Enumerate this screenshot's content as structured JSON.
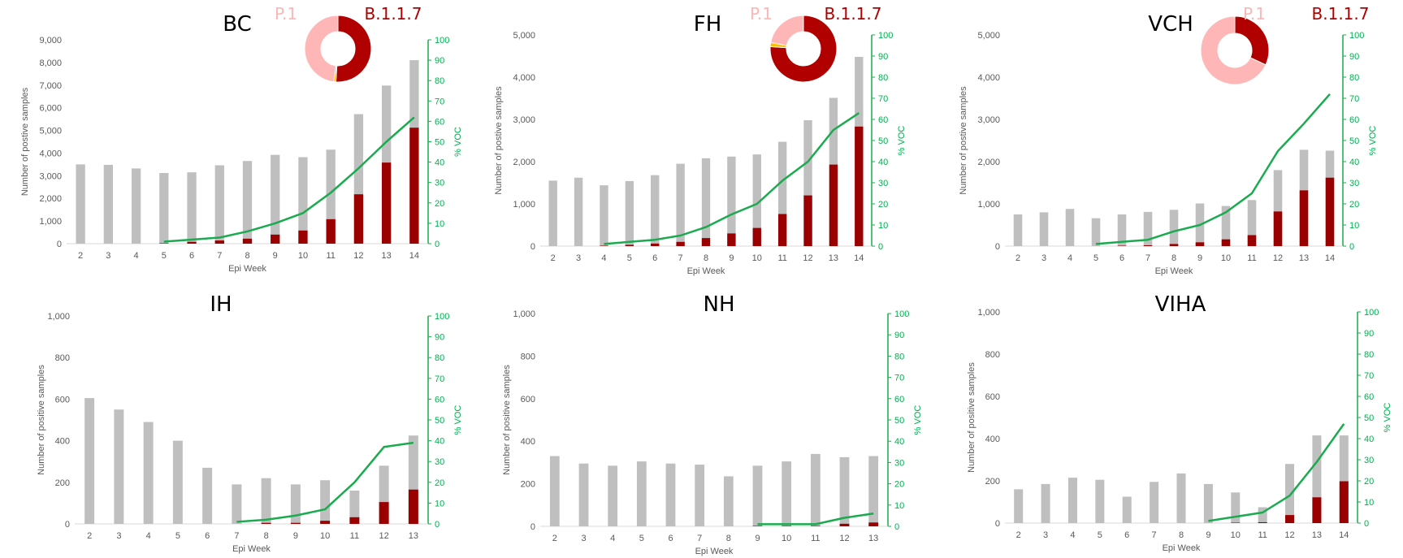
{
  "colors": {
    "total_bar": "#bfbfbf",
    "voc_bar": "#9b0000",
    "voc_line": "#1aab4f",
    "b117": "#b00000",
    "p1": "#ffb6b6",
    "other_lineage": "#ffc000",
    "axis_text": "#595959",
    "green_text": "#00b050"
  },
  "chart_data": [
    {
      "type": "bar",
      "title": "BC",
      "xlabel": "Epi Week",
      "ylabel": "Number of postive samples",
      "y2label": "% VOC",
      "categories": [
        "2",
        "3",
        "4",
        "5",
        "6",
        "7",
        "8",
        "9",
        "10",
        "11",
        "12",
        "13",
        "14"
      ],
      "ylim": [
        0,
        9000
      ],
      "yticks": [
        "0",
        "1,000",
        "2,000",
        "3,000",
        "4,000",
        "5,000",
        "6,000",
        "7,000",
        "8,000",
        "9,000"
      ],
      "y2lim": [
        0,
        100
      ],
      "y2ticks": [
        "0",
        "10",
        "20",
        "30",
        "40",
        "50",
        "60",
        "70",
        "80",
        "90",
        "100"
      ],
      "series": [
        {
          "values": [
            3500,
            3480,
            3320,
            3120,
            3150,
            3460,
            3650,
            3920,
            3820,
            4150,
            5720,
            6980,
            8100
          ]
        },
        {
          "values": [
            0,
            0,
            0,
            20,
            80,
            140,
            220,
            400,
            580,
            1080,
            2180,
            3580,
            5120
          ]
        },
        {
          "values": [
            null,
            null,
            null,
            1,
            2,
            3,
            6,
            10,
            15,
            25,
            37,
            50,
            62
          ]
        }
      ],
      "donut": {
        "labels": [
          "B.1.1.7",
          "P.1"
        ],
        "segments": [
          {
            "value": 51
          },
          {
            "value": 1
          },
          {
            "value": 48
          }
        ]
      }
    },
    {
      "type": "bar",
      "title": "FH",
      "xlabel": "Epi Week",
      "ylabel": "Number of postive samples",
      "y2label": "% VOC",
      "categories": [
        "2",
        "3",
        "4",
        "5",
        "6",
        "7",
        "8",
        "9",
        "10",
        "11",
        "12",
        "13",
        "14"
      ],
      "ylim": [
        0,
        5000
      ],
      "yticks": [
        "0",
        "1,000",
        "2,000",
        "3,000",
        "4,000",
        "5,000"
      ],
      "y2lim": [
        0,
        100
      ],
      "y2ticks": [
        "0",
        "10",
        "20",
        "30",
        "40",
        "50",
        "60",
        "70",
        "80",
        "90",
        "100"
      ],
      "series": [
        {
          "values": [
            1550,
            1620,
            1440,
            1540,
            1680,
            1950,
            2080,
            2120,
            2170,
            2470,
            2980,
            3510,
            4480
          ]
        },
        {
          "values": [
            0,
            0,
            10,
            30,
            60,
            100,
            190,
            300,
            430,
            760,
            1200,
            1930,
            2830
          ]
        },
        {
          "values": [
            null,
            null,
            1,
            2,
            3,
            5,
            9,
            15,
            20,
            31,
            40,
            55,
            63
          ]
        }
      ],
      "donut": {
        "labels": [
          "B.1.1.7",
          "P.1"
        ],
        "segments": [
          {
            "value": 76
          },
          {
            "value": 2
          },
          {
            "value": 22
          }
        ]
      }
    },
    {
      "type": "bar",
      "title": "VCH",
      "xlabel": "Epi Week",
      "ylabel": "Number of postive samples",
      "y2label": "% VOC",
      "categories": [
        "2",
        "3",
        "4",
        "5",
        "6",
        "7",
        "8",
        "9",
        "10",
        "11",
        "12",
        "13",
        "14"
      ],
      "ylim": [
        0,
        5000
      ],
      "yticks": [
        "0",
        "1,000",
        "2,000",
        "3,000",
        "4,000",
        "5,000"
      ],
      "y2lim": [
        0,
        100
      ],
      "y2ticks": [
        "0",
        "10",
        "20",
        "30",
        "40",
        "50",
        "60",
        "70",
        "80",
        "90",
        "100"
      ],
      "series": [
        {
          "values": [
            750,
            800,
            880,
            660,
            750,
            810,
            860,
            1010,
            950,
            1090,
            1800,
            2280,
            2260
          ]
        },
        {
          "values": [
            0,
            0,
            0,
            0,
            10,
            20,
            50,
            90,
            160,
            260,
            820,
            1320,
            1620
          ]
        },
        {
          "values": [
            null,
            null,
            null,
            1,
            2,
            3,
            7,
            10,
            16,
            25,
            45,
            58,
            72
          ]
        }
      ],
      "donut": {
        "labels": [
          "B.1.1.7",
          "P.1"
        ],
        "segments": [
          {
            "value": 32
          },
          {
            "value": 68
          }
        ]
      }
    },
    {
      "type": "bar",
      "title": "IH",
      "xlabel": "Epi Week",
      "ylabel": "Number of positive samples",
      "y2label": "% VOC",
      "categories": [
        "2",
        "3",
        "4",
        "5",
        "6",
        "7",
        "8",
        "9",
        "10",
        "11",
        "12",
        "13"
      ],
      "ylim": [
        0,
        1000
      ],
      "yticks": [
        "0",
        "200",
        "400",
        "600",
        "800",
        "1,000"
      ],
      "y2lim": [
        0,
        100
      ],
      "y2ticks": [
        "0",
        "10",
        "20",
        "30",
        "40",
        "50",
        "60",
        "70",
        "80",
        "90",
        "100"
      ],
      "series": [
        {
          "values": [
            605,
            550,
            490,
            400,
            270,
            190,
            220,
            190,
            210,
            160,
            280,
            425
          ]
        },
        {
          "values": [
            0,
            0,
            0,
            0,
            0,
            0,
            5,
            5,
            15,
            32,
            105,
            165
          ]
        },
        {
          "values": [
            null,
            null,
            null,
            null,
            null,
            1,
            2,
            4,
            7,
            20,
            37,
            39
          ]
        }
      ]
    },
    {
      "type": "bar",
      "title": "NH",
      "xlabel": "Epi Week",
      "ylabel": "Number of positive samples",
      "y2label": "% VOC",
      "categories": [
        "2",
        "3",
        "4",
        "5",
        "6",
        "7",
        "8",
        "9",
        "10",
        "11",
        "12",
        "13"
      ],
      "ylim": [
        0,
        1000
      ],
      "yticks": [
        "0",
        "200",
        "400",
        "600",
        "800",
        "1,000"
      ],
      "y2lim": [
        0,
        100
      ],
      "y2ticks": [
        "0",
        "10",
        "20",
        "30",
        "40",
        "50",
        "60",
        "70",
        "80",
        "90",
        "100"
      ],
      "series": [
        {
          "values": [
            330,
            295,
            285,
            305,
            295,
            290,
            235,
            285,
            305,
            340,
            325,
            330
          ]
        },
        {
          "values": [
            0,
            0,
            0,
            0,
            0,
            0,
            0,
            2,
            2,
            2,
            12,
            18
          ]
        },
        {
          "values": [
            null,
            null,
            null,
            null,
            null,
            null,
            null,
            1,
            1,
            1,
            4,
            6
          ]
        }
      ]
    },
    {
      "type": "bar",
      "title": "VIHA",
      "xlabel": "Epi Week",
      "ylabel": "Number of positive samples",
      "y2label": "% VOC",
      "categories": [
        "2",
        "3",
        "4",
        "5",
        "6",
        "7",
        "8",
        "9",
        "10",
        "11",
        "12",
        "13",
        "14"
      ],
      "ylim": [
        0,
        1000
      ],
      "yticks": [
        "0",
        "200",
        "400",
        "600",
        "800",
        "1,000"
      ],
      "y2lim": [
        0,
        100
      ],
      "y2ticks": [
        "0",
        "10",
        "20",
        "30",
        "40",
        "50",
        "60",
        "70",
        "80",
        "90",
        "100"
      ],
      "series": [
        {
          "values": [
            160,
            185,
            215,
            205,
            125,
            195,
            235,
            185,
            145,
            75,
            280,
            415,
            415
          ]
        },
        {
          "values": [
            0,
            0,
            0,
            0,
            0,
            0,
            0,
            0,
            2,
            4,
            38,
            122,
            198
          ]
        },
        {
          "values": [
            null,
            null,
            null,
            null,
            null,
            null,
            null,
            1,
            3,
            5,
            13,
            29,
            47
          ]
        }
      ]
    }
  ]
}
